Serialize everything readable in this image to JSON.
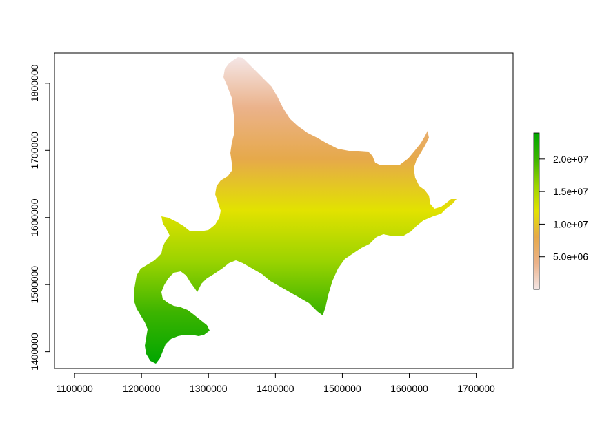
{
  "map": {
    "region": "Hokkaido",
    "x_ticks": [
      "1100000",
      "1200000",
      "1300000",
      "1400000",
      "1500000",
      "1600000",
      "1700000"
    ],
    "y_ticks": [
      "1400000",
      "1500000",
      "1600000",
      "1700000",
      "1800000"
    ],
    "x_range": [
      1070000,
      1755000
    ],
    "y_range": [
      1375000,
      1845000
    ],
    "raster_value_gradient": {
      "low_value_north": 0,
      "high_value_south": 24000000,
      "colors": [
        "#f4e6e6",
        "#ebb28a",
        "#e6a94a",
        "#e2e200",
        "#9ad300",
        "#3cb400",
        "#00a600"
      ]
    },
    "legend": {
      "labels": [
        "2.0e+07",
        "1.5e+07",
        "1.0e+07",
        "5.0e+06"
      ],
      "label_values": [
        20000000,
        15000000,
        10000000,
        5000000
      ],
      "range": [
        0,
        24000000
      ],
      "colors": [
        "#f4e6e6",
        "#ebb28a",
        "#e6a94a",
        "#e2e200",
        "#9ad300",
        "#3cb400",
        "#00a600"
      ]
    }
  }
}
